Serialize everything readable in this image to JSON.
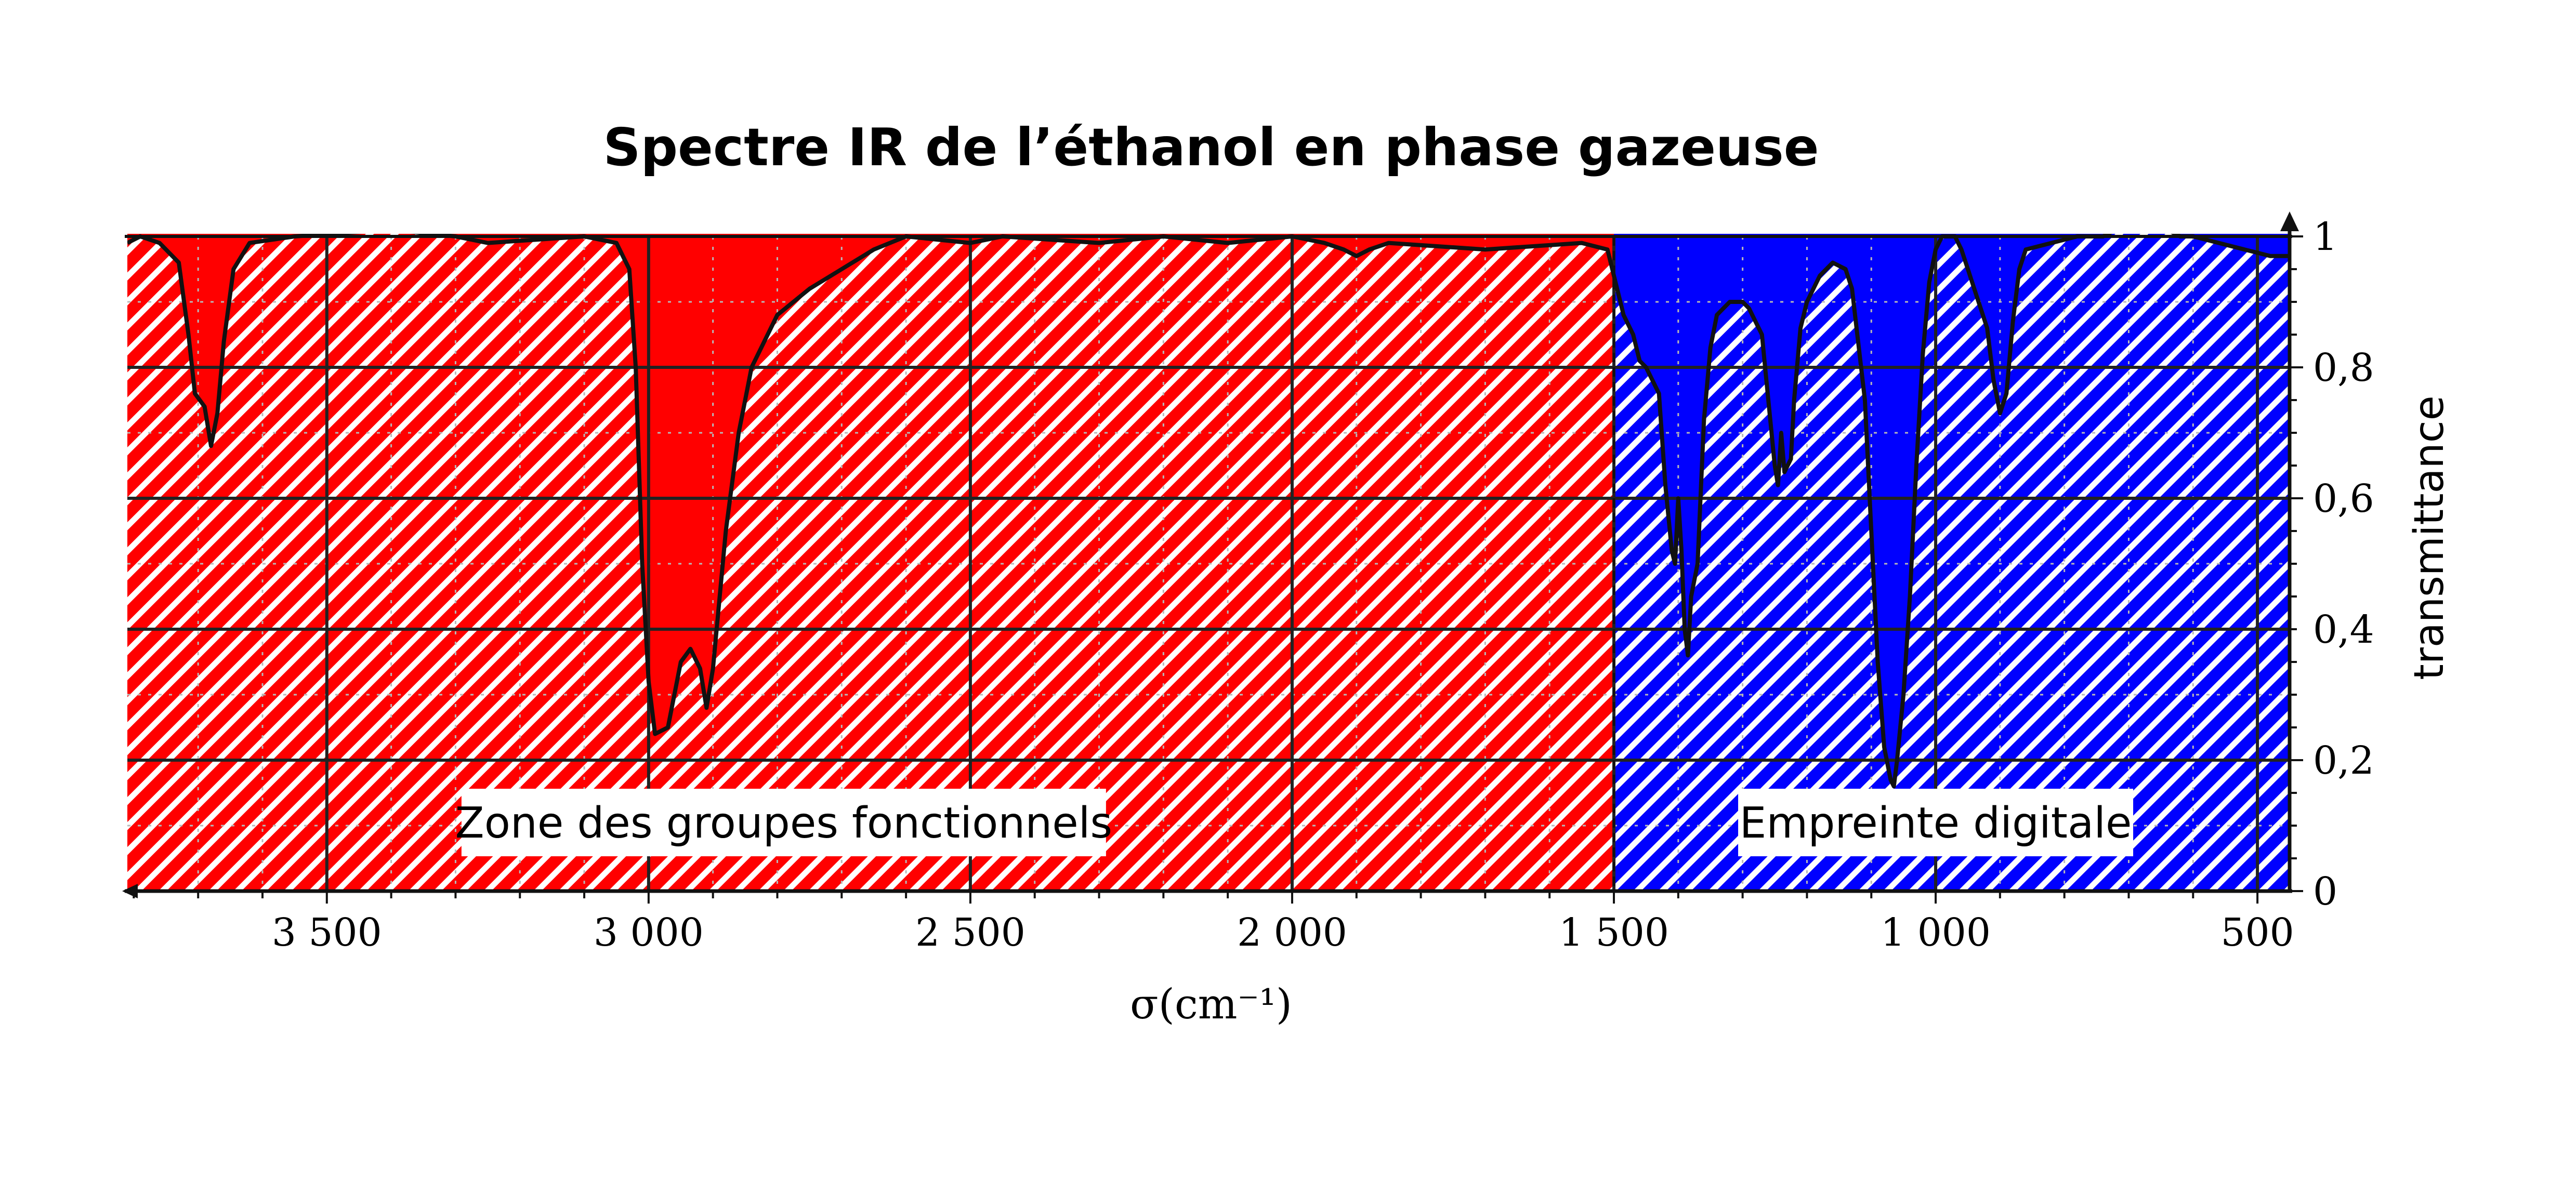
{
  "chart_data": {
    "type": "area",
    "title": "Spectre IR de l’éthanol en phase gazeuse",
    "xlabel": "σ(cm⁻¹)",
    "ylabel": "transmittance",
    "x_reversed": true,
    "xlim": [
      3810,
      450
    ],
    "ylim": [
      0,
      1
    ],
    "x_ticks": [
      3500,
      3000,
      2500,
      2000,
      1500,
      1000,
      500
    ],
    "x_tick_labels": [
      "3 500",
      "3 000",
      "2 500",
      "2 000",
      "1 500",
      "1 000",
      "500"
    ],
    "y_ticks": [
      0,
      0.2,
      0.4,
      0.6,
      0.8,
      1
    ],
    "y_tick_labels": [
      "0",
      "0,2",
      "0,4",
      "0,6",
      "0,8",
      "1"
    ],
    "grid": true,
    "regions": [
      {
        "label": "Zone des groupes fonctionnels",
        "from": 3810,
        "to": 1500,
        "color": "#ff0000"
      },
      {
        "label": "Empreinte digitale",
        "from": 1500,
        "to": 450,
        "color": "#0000ff"
      }
    ],
    "series": [
      {
        "points": [
          [
            3810,
            0.99
          ],
          [
            3790,
            1.0
          ],
          [
            3760,
            0.99
          ],
          [
            3730,
            0.96
          ],
          [
            3715,
            0.85
          ],
          [
            3705,
            0.76
          ],
          [
            3690,
            0.74
          ],
          [
            3680,
            0.68
          ],
          [
            3670,
            0.73
          ],
          [
            3660,
            0.84
          ],
          [
            3645,
            0.95
          ],
          [
            3620,
            0.99
          ],
          [
            3550,
            1.0
          ],
          [
            3400,
            1.01
          ],
          [
            3300,
            1.0
          ],
          [
            3250,
            0.99
          ],
          [
            3100,
            1.0
          ],
          [
            3050,
            0.99
          ],
          [
            3030,
            0.95
          ],
          [
            3020,
            0.8
          ],
          [
            3010,
            0.5
          ],
          [
            3000,
            0.32
          ],
          [
            2990,
            0.24
          ],
          [
            2970,
            0.25
          ],
          [
            2960,
            0.3
          ],
          [
            2950,
            0.35
          ],
          [
            2935,
            0.37
          ],
          [
            2920,
            0.34
          ],
          [
            2910,
            0.28
          ],
          [
            2900,
            0.34
          ],
          [
            2880,
            0.55
          ],
          [
            2860,
            0.7
          ],
          [
            2840,
            0.8
          ],
          [
            2800,
            0.88
          ],
          [
            2750,
            0.92
          ],
          [
            2700,
            0.95
          ],
          [
            2650,
            0.98
          ],
          [
            2600,
            1.0
          ],
          [
            2500,
            0.99
          ],
          [
            2450,
            1.0
          ],
          [
            2300,
            0.99
          ],
          [
            2200,
            1.0
          ],
          [
            2100,
            0.99
          ],
          [
            2000,
            1.0
          ],
          [
            1950,
            0.99
          ],
          [
            1920,
            0.98
          ],
          [
            1900,
            0.97
          ],
          [
            1880,
            0.98
          ],
          [
            1850,
            0.99
          ],
          [
            1700,
            0.98
          ],
          [
            1550,
            0.99
          ],
          [
            1510,
            0.98
          ],
          [
            1500,
            0.94
          ],
          [
            1485,
            0.88
          ],
          [
            1470,
            0.85
          ],
          [
            1460,
            0.81
          ],
          [
            1450,
            0.8
          ],
          [
            1440,
            0.78
          ],
          [
            1430,
            0.76
          ],
          [
            1420,
            0.62
          ],
          [
            1410,
            0.52
          ],
          [
            1405,
            0.5
          ],
          [
            1400,
            0.6
          ],
          [
            1395,
            0.52
          ],
          [
            1390,
            0.4
          ],
          [
            1385,
            0.36
          ],
          [
            1380,
            0.45
          ],
          [
            1370,
            0.5
          ],
          [
            1360,
            0.72
          ],
          [
            1350,
            0.83
          ],
          [
            1340,
            0.88
          ],
          [
            1320,
            0.9
          ],
          [
            1300,
            0.9
          ],
          [
            1290,
            0.89
          ],
          [
            1270,
            0.85
          ],
          [
            1260,
            0.75
          ],
          [
            1250,
            0.65
          ],
          [
            1245,
            0.62
          ],
          [
            1240,
            0.7
          ],
          [
            1235,
            0.64
          ],
          [
            1225,
            0.66
          ],
          [
            1220,
            0.75
          ],
          [
            1210,
            0.86
          ],
          [
            1200,
            0.9
          ],
          [
            1180,
            0.94
          ],
          [
            1160,
            0.96
          ],
          [
            1140,
            0.95
          ],
          [
            1130,
            0.92
          ],
          [
            1110,
            0.75
          ],
          [
            1100,
            0.55
          ],
          [
            1090,
            0.35
          ],
          [
            1080,
            0.22
          ],
          [
            1070,
            0.17
          ],
          [
            1065,
            0.16
          ],
          [
            1060,
            0.2
          ],
          [
            1050,
            0.3
          ],
          [
            1040,
            0.45
          ],
          [
            1030,
            0.65
          ],
          [
            1020,
            0.82
          ],
          [
            1010,
            0.93
          ],
          [
            1000,
            0.98
          ],
          [
            990,
            1.0
          ],
          [
            970,
            1.0
          ],
          [
            960,
            0.98
          ],
          [
            950,
            0.95
          ],
          [
            940,
            0.92
          ],
          [
            920,
            0.86
          ],
          [
            910,
            0.78
          ],
          [
            900,
            0.73
          ],
          [
            890,
            0.76
          ],
          [
            880,
            0.87
          ],
          [
            870,
            0.95
          ],
          [
            860,
            0.98
          ],
          [
            820,
            0.99
          ],
          [
            780,
            1.0
          ],
          [
            740,
            1.0
          ],
          [
            720,
            1.01
          ],
          [
            700,
            1.02
          ],
          [
            680,
            1.02
          ],
          [
            660,
            1.01
          ],
          [
            640,
            1.01
          ],
          [
            620,
            1.0
          ],
          [
            600,
            1.0
          ],
          [
            560,
            0.99
          ],
          [
            520,
            0.98
          ],
          [
            480,
            0.97
          ],
          [
            450,
            0.97
          ]
        ]
      }
    ]
  }
}
